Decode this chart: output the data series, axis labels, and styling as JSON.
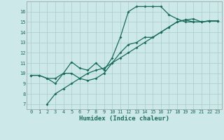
{
  "xlabel": "Humidex (Indice chaleur)",
  "bg_color": "#cce8e8",
  "grid_color": "#aacccc",
  "line_color": "#1a6b5a",
  "xlim": [
    -0.5,
    23.5
  ],
  "ylim": [
    6.5,
    17.0
  ],
  "yticks": [
    7,
    8,
    9,
    10,
    11,
    12,
    13,
    14,
    15,
    16
  ],
  "xticks": [
    0,
    1,
    2,
    3,
    4,
    5,
    6,
    7,
    8,
    9,
    10,
    11,
    12,
    13,
    14,
    15,
    16,
    17,
    18,
    19,
    20,
    21,
    22,
    23
  ],
  "line1_x": [
    0,
    1,
    2,
    3,
    4,
    5,
    6,
    7,
    8,
    9,
    10,
    11,
    12,
    13,
    14,
    15,
    16,
    17,
    18,
    19,
    20,
    21,
    22,
    23
  ],
  "line1_y": [
    9.8,
    9.8,
    9.5,
    9.5,
    10.0,
    11.1,
    10.5,
    10.3,
    11.0,
    10.3,
    11.5,
    13.5,
    16.0,
    16.5,
    16.5,
    16.5,
    16.5,
    15.7,
    15.3,
    15.0,
    15.0,
    15.0,
    15.1,
    15.1
  ],
  "line2_x": [
    2,
    3,
    4,
    5,
    6,
    7,
    8,
    9,
    10,
    11,
    12,
    13,
    14,
    15,
    16,
    17,
    18,
    19,
    20,
    21,
    22,
    23
  ],
  "line2_y": [
    7.0,
    8.0,
    8.5,
    9.0,
    9.5,
    10.0,
    10.3,
    10.5,
    11.0,
    11.5,
    12.0,
    12.5,
    13.0,
    13.5,
    14.0,
    14.5,
    15.0,
    15.2,
    15.3,
    15.0,
    15.1,
    15.1
  ],
  "line3_x": [
    0,
    1,
    2,
    3,
    4,
    5,
    6,
    7,
    8,
    9,
    10,
    11,
    12,
    13,
    14,
    15,
    16,
    17,
    18,
    19,
    20,
    21,
    22,
    23
  ],
  "line3_y": [
    9.8,
    9.8,
    9.5,
    9.0,
    10.0,
    10.0,
    9.5,
    9.3,
    9.5,
    10.0,
    11.0,
    12.0,
    12.8,
    13.0,
    13.5,
    13.5,
    14.0,
    14.5,
    15.0,
    15.2,
    15.0,
    15.0,
    15.1,
    15.1
  ],
  "tick_fontsize": 5.0,
  "xlabel_fontsize": 6.5
}
